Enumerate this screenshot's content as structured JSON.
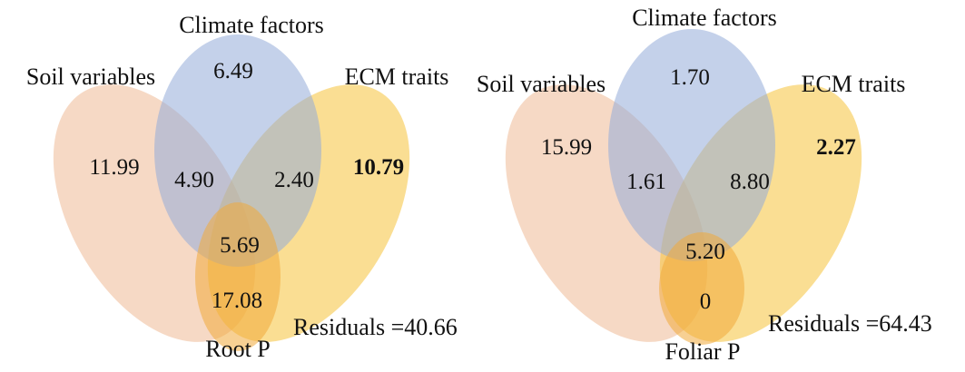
{
  "colors": {
    "soil": "#eeb48c",
    "climate": "#93acd8",
    "ecm": "#f5c23a",
    "response": "#f0a93a"
  },
  "diagrams": [
    {
      "sets": {
        "soil": "Soil variables",
        "climate": "Climate factors",
        "ecm": "ECM traits",
        "response": "Root P"
      },
      "values": {
        "soil_only": "11.99",
        "climate_only": "6.49",
        "ecm_only": "10.79",
        "soil_climate": "4.90",
        "climate_ecm": "2.40",
        "all_three": "5.69",
        "soil_response": "17.08"
      },
      "residuals": "Residuals =40.66"
    },
    {
      "sets": {
        "soil": "Soil variables",
        "climate": "Climate factors",
        "ecm": "ECM traits",
        "response": "Foliar P"
      },
      "values": {
        "soil_only": "15.99",
        "climate_only": "1.70",
        "ecm_only": "2.27",
        "soil_climate": "1.61",
        "climate_ecm": "8.80",
        "all_three": "5.20",
        "soil_response": "0"
      },
      "residuals": "Residuals =64.43"
    }
  ]
}
